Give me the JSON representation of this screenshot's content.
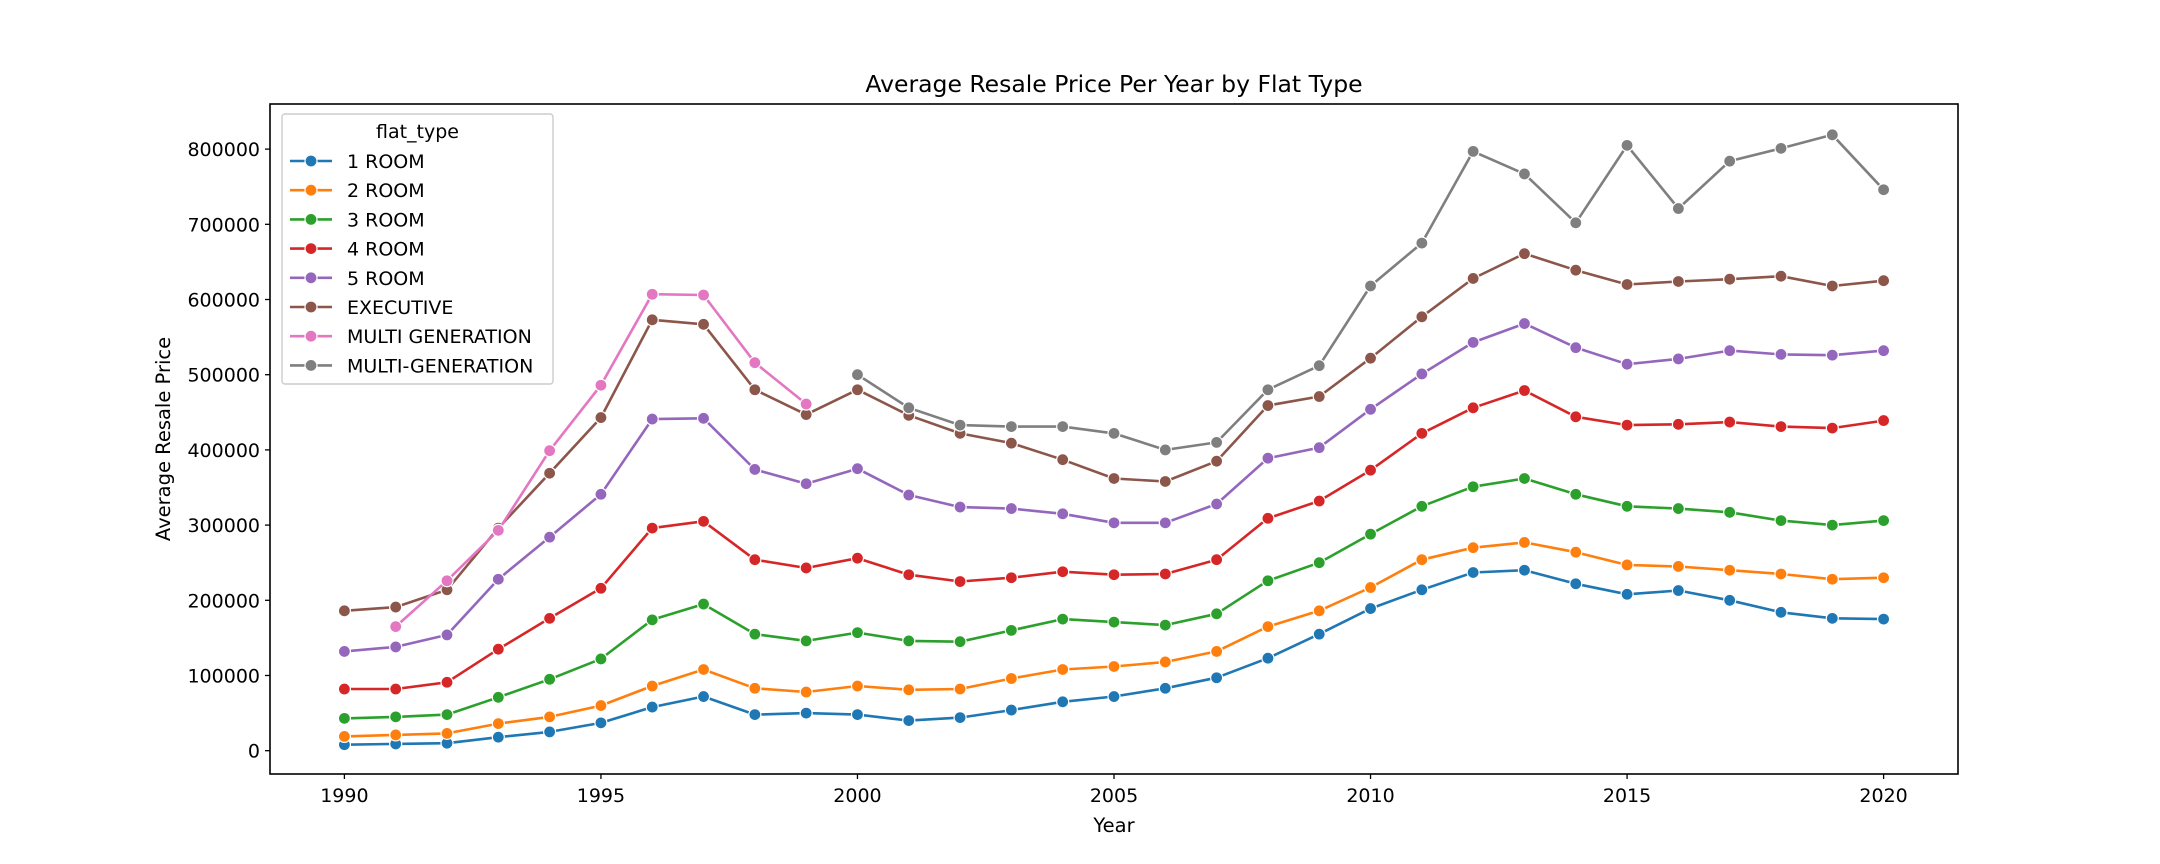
{
  "chart_data": {
    "type": "line",
    "title": "Average Resale Price Per Year by Flat Type",
    "xlabel": "Year",
    "ylabel": "Average Resale Price",
    "xlim": [
      1988.55,
      2021.45
    ],
    "ylim": [
      -31000,
      860000
    ],
    "xticks": [
      1990,
      1995,
      2000,
      2005,
      2010,
      2015,
      2020
    ],
    "yticks": [
      0,
      100000,
      200000,
      300000,
      400000,
      500000,
      600000,
      700000,
      800000
    ],
    "grid": false,
    "legend": {
      "title": "flat_type",
      "placement": "upper left"
    },
    "series": [
      {
        "name": "1 ROOM",
        "color": "#1f77b4",
        "x": [
          1990,
          1991,
          1992,
          1993,
          1994,
          1995,
          1996,
          1997,
          1998,
          1999,
          2000,
          2001,
          2002,
          2003,
          2004,
          2005,
          2006,
          2007,
          2008,
          2009,
          2010,
          2011,
          2012,
          2013,
          2014,
          2015,
          2016,
          2017,
          2018,
          2019,
          2020
        ],
        "y": [
          8000,
          9000,
          10000,
          18000,
          25000,
          37000,
          58000,
          72000,
          48000,
          50000,
          48000,
          40000,
          44000,
          54000,
          65000,
          72000,
          83000,
          97000,
          123000,
          155000,
          189000,
          214000,
          237000,
          240000,
          222000,
          208000,
          213000,
          200000,
          184000,
          176000,
          175000
        ]
      },
      {
        "name": "2 ROOM",
        "color": "#ff7f0e",
        "x": [
          1990,
          1991,
          1992,
          1993,
          1994,
          1995,
          1996,
          1997,
          1998,
          1999,
          2000,
          2001,
          2002,
          2003,
          2004,
          2005,
          2006,
          2007,
          2008,
          2009,
          2010,
          2011,
          2012,
          2013,
          2014,
          2015,
          2016,
          2017,
          2018,
          2019,
          2020
        ],
        "y": [
          19000,
          21000,
          23000,
          36000,
          45000,
          60000,
          86000,
          108000,
          83000,
          78000,
          86000,
          81000,
          82000,
          96000,
          108000,
          112000,
          118000,
          132000,
          165000,
          186000,
          217000,
          254000,
          270000,
          277000,
          264000,
          247000,
          245000,
          240000,
          235000,
          228000,
          230000
        ]
      },
      {
        "name": "3 ROOM",
        "color": "#2ca02c",
        "x": [
          1990,
          1991,
          1992,
          1993,
          1994,
          1995,
          1996,
          1997,
          1998,
          1999,
          2000,
          2001,
          2002,
          2003,
          2004,
          2005,
          2006,
          2007,
          2008,
          2009,
          2010,
          2011,
          2012,
          2013,
          2014,
          2015,
          2016,
          2017,
          2018,
          2019,
          2020
        ],
        "y": [
          43000,
          45000,
          48000,
          71000,
          95000,
          122000,
          174000,
          195000,
          155000,
          146000,
          157000,
          146000,
          145000,
          160000,
          175000,
          171000,
          167000,
          182000,
          226000,
          250000,
          288000,
          325000,
          351000,
          362000,
          341000,
          325000,
          322000,
          317000,
          306000,
          300000,
          306000
        ]
      },
      {
        "name": "4 ROOM",
        "color": "#d62728",
        "x": [
          1990,
          1991,
          1992,
          1993,
          1994,
          1995,
          1996,
          1997,
          1998,
          1999,
          2000,
          2001,
          2002,
          2003,
          2004,
          2005,
          2006,
          2007,
          2008,
          2009,
          2010,
          2011,
          2012,
          2013,
          2014,
          2015,
          2016,
          2017,
          2018,
          2019,
          2020
        ],
        "y": [
          82000,
          82000,
          91000,
          135000,
          176000,
          216000,
          296000,
          305000,
          254000,
          243000,
          256000,
          234000,
          225000,
          230000,
          238000,
          234000,
          235000,
          254000,
          309000,
          332000,
          373000,
          422000,
          456000,
          479000,
          444000,
          433000,
          434000,
          437000,
          431000,
          429000,
          439000
        ]
      },
      {
        "name": "5 ROOM",
        "color": "#9467bd",
        "x": [
          1990,
          1991,
          1992,
          1993,
          1994,
          1995,
          1996,
          1997,
          1998,
          1999,
          2000,
          2001,
          2002,
          2003,
          2004,
          2005,
          2006,
          2007,
          2008,
          2009,
          2010,
          2011,
          2012,
          2013,
          2014,
          2015,
          2016,
          2017,
          2018,
          2019,
          2020
        ],
        "y": [
          132000,
          138000,
          154000,
          228000,
          284000,
          341000,
          441000,
          442000,
          374000,
          355000,
          375000,
          340000,
          324000,
          322000,
          315000,
          303000,
          303000,
          328000,
          389000,
          403000,
          454000,
          501000,
          543000,
          568000,
          536000,
          514000,
          521000,
          532000,
          527000,
          526000,
          532000
        ]
      },
      {
        "name": "EXECUTIVE",
        "color": "#8c564b",
        "x": [
          1990,
          1991,
          1992,
          1993,
          1994,
          1995,
          1996,
          1997,
          1998,
          1999,
          2000,
          2001,
          2002,
          2003,
          2004,
          2005,
          2006,
          2007,
          2008,
          2009,
          2010,
          2011,
          2012,
          2013,
          2014,
          2015,
          2016,
          2017,
          2018,
          2019,
          2020
        ],
        "y": [
          186000,
          191000,
          214000,
          296000,
          369000,
          443000,
          573000,
          567000,
          480000,
          447000,
          480000,
          446000,
          422000,
          409000,
          387000,
          362000,
          358000,
          385000,
          459000,
          471000,
          522000,
          577000,
          628000,
          661000,
          639000,
          620000,
          624000,
          627000,
          631000,
          618000,
          625000
        ]
      },
      {
        "name": "MULTI GENERATION",
        "color": "#e377c2",
        "x": [
          1991,
          1992,
          1993,
          1994,
          1995,
          1996,
          1997,
          1998,
          1999
        ],
        "y": [
          165000,
          226000,
          293000,
          399000,
          486000,
          607000,
          606000,
          516000,
          461000
        ]
      },
      {
        "name": "MULTI-GENERATION",
        "color": "#7f7f7f",
        "x": [
          2000,
          2001,
          2002,
          2003,
          2004,
          2005,
          2006,
          2007,
          2008,
          2009,
          2010,
          2011,
          2012,
          2013,
          2014,
          2015,
          2016,
          2017,
          2018,
          2019,
          2020
        ],
        "y": [
          500000,
          456000,
          433000,
          431000,
          431000,
          422000,
          400000,
          410000,
          480000,
          512000,
          618000,
          675000,
          797000,
          767000,
          702000,
          805000,
          721000,
          784000,
          801000,
          819000,
          746000
        ]
      }
    ]
  }
}
